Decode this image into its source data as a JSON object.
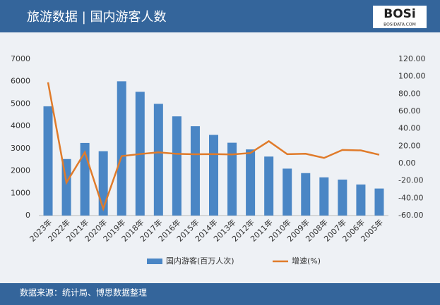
{
  "chart_data": {
    "type": "bar-line",
    "title": "旅游数据 | 国内游客人数",
    "logo": "BOSi",
    "logo_sub": "BOSIDATA.COM",
    "source": "数据来源：统计局、博思数据整理",
    "categories": [
      "2023年",
      "2022年",
      "2021年",
      "2020年",
      "2019年",
      "2018年",
      "2017年",
      "2016年",
      "2015年",
      "2014年",
      "2013年",
      "2012年",
      "2011年",
      "2010年",
      "2009年",
      "2008年",
      "2007年",
      "2006年",
      "2005年"
    ],
    "series": [
      {
        "name": "国内游客(百万人次)",
        "type": "bar",
        "color": "#4a86c5",
        "values": [
          4890,
          2530,
          3250,
          2880,
          6010,
          5540,
          5000,
          4440,
          4000,
          3610,
          3260,
          2960,
          2640,
          2100,
          1900,
          1710,
          1610,
          1390,
          1210
        ]
      },
      {
        "name": "增速(%)",
        "type": "line",
        "axis": "y2",
        "color": "#e07b2a",
        "values": [
          93.3,
          -22.1,
          12.8,
          -52.1,
          8.4,
          10.8,
          12.8,
          11.0,
          10.5,
          10.7,
          10.3,
          12.0,
          25.6,
          10.6,
          11.1,
          6.3,
          15.5,
          15.0,
          10.0
        ]
      }
    ],
    "ylim": [
      0,
      7000
    ],
    "yticks": [
      0,
      1000,
      2000,
      3000,
      4000,
      5000,
      6000,
      7000
    ],
    "y2lim": [
      -60,
      120
    ],
    "y2ticks": [
      {
        "value": -60,
        "label": "-60.00"
      },
      {
        "value": -40,
        "label": "-40.00"
      },
      {
        "value": -20,
        "label": "-20.00"
      },
      {
        "value": 0,
        "label": "0.00"
      },
      {
        "value": 20,
        "label": "20.00"
      },
      {
        "value": 40,
        "label": "40.00"
      },
      {
        "value": 60,
        "label": "60.00"
      },
      {
        "value": 80,
        "label": "80.00"
      },
      {
        "value": 100,
        "label": "100.00"
      },
      {
        "value": 120,
        "label": "120.00"
      }
    ],
    "legend": "bottom"
  }
}
